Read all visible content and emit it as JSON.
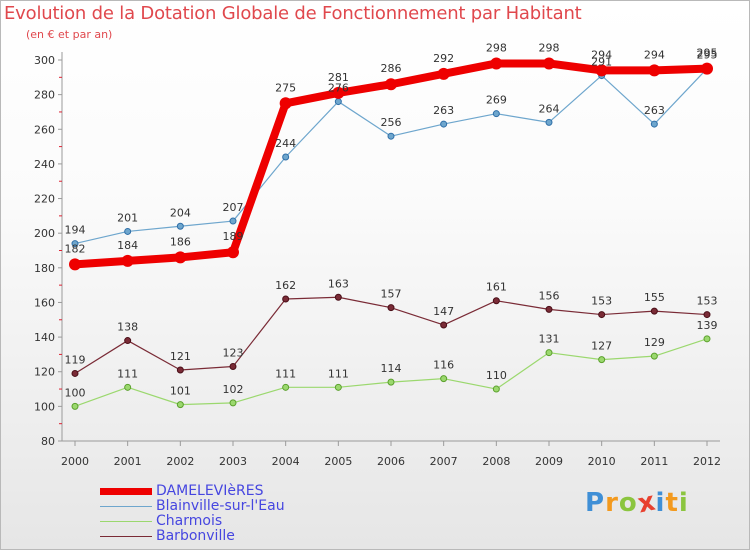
{
  "header": {
    "title": "Evolution de la Dotation Globale de Fonctionnement par Habitant",
    "subtitle": "(en € et par an)"
  },
  "chart_data": {
    "type": "line",
    "title": "Evolution de la Dotation Globale de Fonctionnement par Habitant",
    "subtitle": "(en € et par an)",
    "xlabel": "",
    "ylabel": "",
    "x": [
      "2000",
      "2001",
      "2002",
      "2003",
      "2004",
      "2005",
      "2006",
      "2007",
      "2008",
      "2009",
      "2010",
      "2011",
      "2012"
    ],
    "ylim": [
      80,
      300
    ],
    "yticks": [
      80,
      100,
      120,
      140,
      160,
      180,
      200,
      220,
      240,
      260,
      280,
      300
    ],
    "grid": false,
    "legend_position": "bottom-left",
    "series": [
      {
        "name": "DAMELEVIèRES",
        "color": "#ee0000",
        "values": [
          182,
          184,
          186,
          189,
          275,
          281,
          286,
          292,
          298,
          298,
          294,
          294,
          295
        ]
      },
      {
        "name": "Blainville-sur-l'Eau",
        "color": "#6ea6cd",
        "values": [
          194,
          201,
          204,
          207,
          244,
          276,
          256,
          263,
          269,
          264,
          291,
          263,
          295
        ]
      },
      {
        "name": "Charmois",
        "color": "#9bd86e",
        "values": [
          100,
          111,
          101,
          102,
          111,
          111,
          114,
          116,
          110,
          131,
          127,
          129,
          139
        ]
      },
      {
        "name": "Barbonville",
        "color": "#7a2b36",
        "values": [
          119,
          138,
          121,
          123,
          162,
          163,
          157,
          147,
          161,
          156,
          153,
          155,
          153
        ]
      }
    ]
  },
  "brand": {
    "logo_letters": [
      "P",
      "r",
      "o",
      "x",
      "i",
      "t",
      "i"
    ],
    "logo_colors": [
      "#3f8fd6",
      "#f39a1e",
      "#8bc53f",
      "#e8402e",
      "#3f8fd6",
      "#f39a1e",
      "#8bc53f"
    ]
  }
}
